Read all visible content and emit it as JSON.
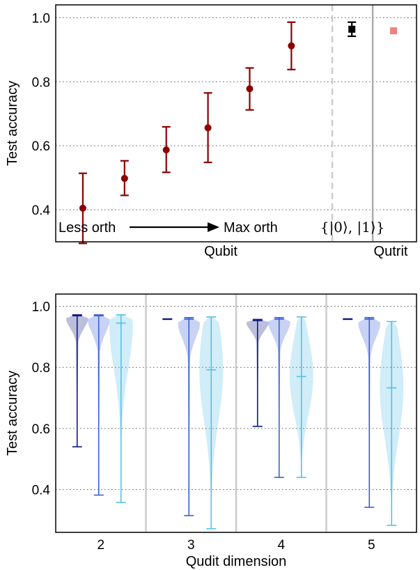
{
  "chart_data": [
    {
      "type": "scatter",
      "ylabel": "Test accuracy",
      "ylim": [
        0.3,
        1.04
      ],
      "yticks": [
        "0.4",
        "0.6",
        "0.8",
        "1.0"
      ],
      "grid": "horizontal-dotted",
      "group_labels": [
        "Qubit",
        "Qutrit"
      ],
      "annotation": {
        "left": "Less orth",
        "right": "Max orth"
      },
      "basis_label": "{|0⟩, |1⟩}",
      "colors": {
        "qubit_points": "#8b0000",
        "basis_point": "#000000",
        "qutrit_point": "#f08080"
      },
      "series": [
        {
          "group": "Qubit",
          "x": [
            1,
            2,
            3,
            4,
            5,
            6
          ],
          "y": [
            0.405,
            0.498,
            0.587,
            0.656,
            0.778,
            0.912
          ],
          "err_low": [
            0.295,
            0.445,
            0.517,
            0.548,
            0.712,
            0.838
          ],
          "err_high": [
            0.514,
            0.553,
            0.659,
            0.765,
            0.843,
            0.986
          ]
        },
        {
          "group": "Qubit-basis",
          "x": [
            7.45
          ],
          "y": [
            0.964
          ],
          "err_low": [
            0.942
          ],
          "err_high": [
            0.986
          ]
        },
        {
          "group": "Qutrit",
          "x": [
            8.45
          ],
          "y": [
            0.959
          ],
          "err_low": [
            0.959
          ],
          "err_high": [
            0.959
          ]
        }
      ]
    },
    {
      "type": "violin",
      "xlabel": "Qudit dimension",
      "ylabel": "Test accuracy",
      "categories": [
        "2",
        "3",
        "4",
        "5"
      ],
      "ylim": [
        0.26,
        1.04
      ],
      "yticks": [
        "0.4",
        "0.6",
        "0.8",
        "1.0"
      ],
      "grid": "horizontal-dotted",
      "colors": [
        "#0a1a82",
        "#3a5fd9",
        "#56c0e6"
      ],
      "groups": [
        {
          "category": "2",
          "violins": [
            {
              "min": 0.54,
              "max": 0.972,
              "median": 0.969
            },
            {
              "min": 0.382,
              "max": 0.972,
              "median": 0.969
            },
            {
              "min": 0.358,
              "max": 0.972,
              "median": 0.945
            }
          ]
        },
        {
          "category": "3",
          "violins": [
            {
              "min": 0.958,
              "max": 0.958,
              "median": 0.958
            },
            {
              "min": 0.315,
              "max": 0.963,
              "median": 0.958
            },
            {
              "min": 0.272,
              "max": 0.965,
              "median": 0.792
            }
          ]
        },
        {
          "category": "4",
          "violins": [
            {
              "min": 0.607,
              "max": 0.957,
              "median": 0.953
            },
            {
              "min": 0.44,
              "max": 0.963,
              "median": 0.958
            },
            {
              "min": 0.44,
              "max": 0.965,
              "median": 0.77
            }
          ]
        },
        {
          "category": "5",
          "violins": [
            {
              "min": 0.958,
              "max": 0.958,
              "median": 0.958
            },
            {
              "min": 0.342,
              "max": 0.963,
              "median": 0.958
            },
            {
              "min": 0.283,
              "max": 0.95,
              "median": 0.733
            }
          ]
        }
      ]
    }
  ]
}
